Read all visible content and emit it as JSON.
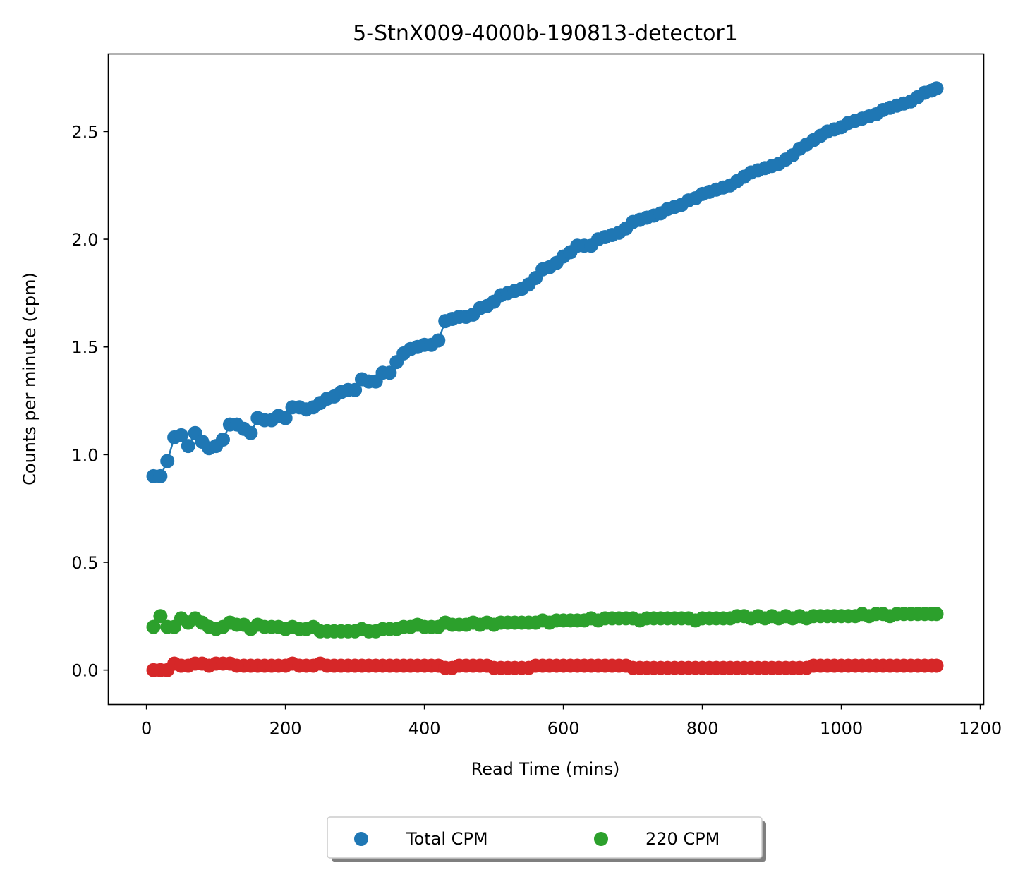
{
  "chart_data": {
    "type": "scatter",
    "title": "5-StnX009-4000b-190813-detector1",
    "xlabel": "Read Time (mins)",
    "ylabel": "Counts per minute (cpm)",
    "xlim": [
      -55,
      1205
    ],
    "ylim": [
      -0.16,
      2.86
    ],
    "xticks": [
      0,
      200,
      400,
      600,
      800,
      1000,
      1200
    ],
    "xtick_labels": [
      "0",
      "200",
      "400",
      "600",
      "800",
      "1000",
      "1200"
    ],
    "yticks": [
      0.0,
      0.5,
      1.0,
      1.5,
      2.0,
      2.5
    ],
    "ytick_labels": [
      "0.0",
      "0.5",
      "1.0",
      "1.5",
      "2.0",
      "2.5"
    ],
    "grid": false,
    "legend": {
      "placement": "below-center",
      "columns": 2,
      "shadow": true
    },
    "series": [
      {
        "name": "Total CPM",
        "color": "#1f77b4",
        "in_legend": true,
        "connected": true,
        "x": [
          10,
          20,
          30,
          40,
          50,
          60,
          70,
          80,
          90,
          100,
          110,
          120,
          130,
          140,
          150,
          160,
          170,
          180,
          190,
          200,
          210,
          220,
          230,
          240,
          250,
          260,
          270,
          280,
          290,
          300,
          310,
          320,
          330,
          340,
          350,
          360,
          370,
          380,
          390,
          400,
          410,
          420,
          430,
          440,
          450,
          460,
          470,
          480,
          490,
          500,
          510,
          520,
          530,
          540,
          550,
          560,
          570,
          580,
          590,
          600,
          610,
          620,
          630,
          640,
          650,
          660,
          670,
          680,
          690,
          700,
          710,
          720,
          730,
          740,
          750,
          760,
          770,
          780,
          790,
          800,
          810,
          820,
          830,
          840,
          850,
          860,
          870,
          880,
          890,
          900,
          910,
          920,
          930,
          940,
          950,
          960,
          970,
          980,
          990,
          1000,
          1010,
          1020,
          1030,
          1040,
          1050,
          1060,
          1070,
          1080,
          1090,
          1100,
          1110,
          1120,
          1130,
          1137
        ],
        "y": [
          0.9,
          0.9,
          0.97,
          1.08,
          1.09,
          1.04,
          1.1,
          1.06,
          1.03,
          1.04,
          1.07,
          1.14,
          1.14,
          1.12,
          1.1,
          1.17,
          1.16,
          1.16,
          1.18,
          1.17,
          1.22,
          1.22,
          1.21,
          1.22,
          1.24,
          1.26,
          1.27,
          1.29,
          1.3,
          1.3,
          1.35,
          1.34,
          1.34,
          1.38,
          1.38,
          1.43,
          1.47,
          1.49,
          1.5,
          1.51,
          1.51,
          1.53,
          1.62,
          1.63,
          1.64,
          1.64,
          1.65,
          1.68,
          1.69,
          1.71,
          1.74,
          1.75,
          1.76,
          1.77,
          1.79,
          1.82,
          1.86,
          1.87,
          1.89,
          1.92,
          1.94,
          1.97,
          1.97,
          1.97,
          2.0,
          2.01,
          2.02,
          2.03,
          2.05,
          2.08,
          2.09,
          2.1,
          2.11,
          2.12,
          2.14,
          2.15,
          2.16,
          2.18,
          2.19,
          2.21,
          2.22,
          2.23,
          2.24,
          2.25,
          2.27,
          2.29,
          2.31,
          2.32,
          2.33,
          2.34,
          2.35,
          2.37,
          2.39,
          2.42,
          2.44,
          2.46,
          2.48,
          2.5,
          2.51,
          2.52,
          2.54,
          2.55,
          2.56,
          2.57,
          2.58,
          2.6,
          2.61,
          2.62,
          2.63,
          2.64,
          2.66,
          2.68,
          2.69,
          2.7
        ]
      },
      {
        "name": "220 CPM",
        "color": "#2ca02c",
        "in_legend": true,
        "connected": true,
        "x": [
          10,
          20,
          30,
          40,
          50,
          60,
          70,
          80,
          90,
          100,
          110,
          120,
          130,
          140,
          150,
          160,
          170,
          180,
          190,
          200,
          210,
          220,
          230,
          240,
          250,
          260,
          270,
          280,
          290,
          300,
          310,
          320,
          330,
          340,
          350,
          360,
          370,
          380,
          390,
          400,
          410,
          420,
          430,
          440,
          450,
          460,
          470,
          480,
          490,
          500,
          510,
          520,
          530,
          540,
          550,
          560,
          570,
          580,
          590,
          600,
          610,
          620,
          630,
          640,
          650,
          660,
          670,
          680,
          690,
          700,
          710,
          720,
          730,
          740,
          750,
          760,
          770,
          780,
          790,
          800,
          810,
          820,
          830,
          840,
          850,
          860,
          870,
          880,
          890,
          900,
          910,
          920,
          930,
          940,
          950,
          960,
          970,
          980,
          990,
          1000,
          1010,
          1020,
          1030,
          1040,
          1050,
          1060,
          1070,
          1080,
          1090,
          1100,
          1110,
          1120,
          1130,
          1137
        ],
        "y": [
          0.2,
          0.25,
          0.2,
          0.2,
          0.24,
          0.22,
          0.24,
          0.22,
          0.2,
          0.19,
          0.2,
          0.22,
          0.21,
          0.21,
          0.19,
          0.21,
          0.2,
          0.2,
          0.2,
          0.19,
          0.2,
          0.19,
          0.19,
          0.2,
          0.18,
          0.18,
          0.18,
          0.18,
          0.18,
          0.18,
          0.19,
          0.18,
          0.18,
          0.19,
          0.19,
          0.19,
          0.2,
          0.2,
          0.21,
          0.2,
          0.2,
          0.2,
          0.22,
          0.21,
          0.21,
          0.21,
          0.22,
          0.21,
          0.22,
          0.21,
          0.22,
          0.22,
          0.22,
          0.22,
          0.22,
          0.22,
          0.23,
          0.22,
          0.23,
          0.23,
          0.23,
          0.23,
          0.23,
          0.24,
          0.23,
          0.24,
          0.24,
          0.24,
          0.24,
          0.24,
          0.23,
          0.24,
          0.24,
          0.24,
          0.24,
          0.24,
          0.24,
          0.24,
          0.23,
          0.24,
          0.24,
          0.24,
          0.24,
          0.24,
          0.25,
          0.25,
          0.24,
          0.25,
          0.24,
          0.25,
          0.24,
          0.25,
          0.24,
          0.25,
          0.24,
          0.25,
          0.25,
          0.25,
          0.25,
          0.25,
          0.25,
          0.25,
          0.26,
          0.25,
          0.26,
          0.26,
          0.25,
          0.26,
          0.26,
          0.26,
          0.26,
          0.26,
          0.26,
          0.26
        ]
      },
      {
        "name": "",
        "color": "#d62728",
        "in_legend": false,
        "connected": true,
        "x": [
          10,
          20,
          30,
          40,
          50,
          60,
          70,
          80,
          90,
          100,
          110,
          120,
          130,
          140,
          150,
          160,
          170,
          180,
          190,
          200,
          210,
          220,
          230,
          240,
          250,
          260,
          270,
          280,
          290,
          300,
          310,
          320,
          330,
          340,
          350,
          360,
          370,
          380,
          390,
          400,
          410,
          420,
          430,
          440,
          450,
          460,
          470,
          480,
          490,
          500,
          510,
          520,
          530,
          540,
          550,
          560,
          570,
          580,
          590,
          600,
          610,
          620,
          630,
          640,
          650,
          660,
          670,
          680,
          690,
          700,
          710,
          720,
          730,
          740,
          750,
          760,
          770,
          780,
          790,
          800,
          810,
          820,
          830,
          840,
          850,
          860,
          870,
          880,
          890,
          900,
          910,
          920,
          930,
          940,
          950,
          960,
          970,
          980,
          990,
          1000,
          1010,
          1020,
          1030,
          1040,
          1050,
          1060,
          1070,
          1080,
          1090,
          1100,
          1110,
          1120,
          1130,
          1137
        ],
        "y": [
          0.0,
          0.0,
          0.0,
          0.03,
          0.02,
          0.02,
          0.03,
          0.03,
          0.02,
          0.03,
          0.03,
          0.03,
          0.02,
          0.02,
          0.02,
          0.02,
          0.02,
          0.02,
          0.02,
          0.02,
          0.03,
          0.02,
          0.02,
          0.02,
          0.03,
          0.02,
          0.02,
          0.02,
          0.02,
          0.02,
          0.02,
          0.02,
          0.02,
          0.02,
          0.02,
          0.02,
          0.02,
          0.02,
          0.02,
          0.02,
          0.02,
          0.02,
          0.01,
          0.01,
          0.02,
          0.02,
          0.02,
          0.02,
          0.02,
          0.01,
          0.01,
          0.01,
          0.01,
          0.01,
          0.01,
          0.02,
          0.02,
          0.02,
          0.02,
          0.02,
          0.02,
          0.02,
          0.02,
          0.02,
          0.02,
          0.02,
          0.02,
          0.02,
          0.02,
          0.01,
          0.01,
          0.01,
          0.01,
          0.01,
          0.01,
          0.01,
          0.01,
          0.01,
          0.01,
          0.01,
          0.01,
          0.01,
          0.01,
          0.01,
          0.01,
          0.01,
          0.01,
          0.01,
          0.01,
          0.01,
          0.01,
          0.01,
          0.01,
          0.01,
          0.01,
          0.02,
          0.02,
          0.02,
          0.02,
          0.02,
          0.02,
          0.02,
          0.02,
          0.02,
          0.02,
          0.02,
          0.02,
          0.02,
          0.02,
          0.02,
          0.02,
          0.02,
          0.02,
          0.02
        ]
      }
    ]
  }
}
